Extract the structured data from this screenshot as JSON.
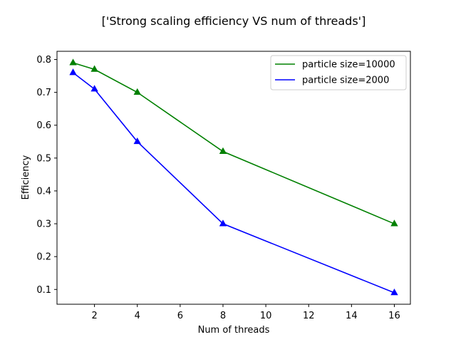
{
  "chart_data": {
    "type": "line",
    "title": "['Strong scaling efficiency VS num of threads']",
    "xlabel": "Num of threads",
    "ylabel": "Efficiency",
    "xlim": [
      0.25,
      16.75
    ],
    "ylim": [
      0.055,
      0.825
    ],
    "xticks": [
      2,
      4,
      6,
      8,
      10,
      12,
      14,
      16
    ],
    "yticks": [
      0.1,
      0.2,
      0.3,
      0.4,
      0.5,
      0.6,
      0.7,
      0.8
    ],
    "grid": false,
    "legend_position": "top-right",
    "x": [
      1,
      2,
      4,
      8,
      16
    ],
    "series": [
      {
        "name": "particle size=10000",
        "color": "#008000",
        "marker": "triangle-up",
        "values": [
          0.79,
          0.77,
          0.7,
          0.52,
          0.3
        ]
      },
      {
        "name": "particle size=2000",
        "color": "#0000ff",
        "marker": "triangle-up",
        "values": [
          0.76,
          0.71,
          0.55,
          0.3,
          0.09
        ]
      }
    ]
  }
}
